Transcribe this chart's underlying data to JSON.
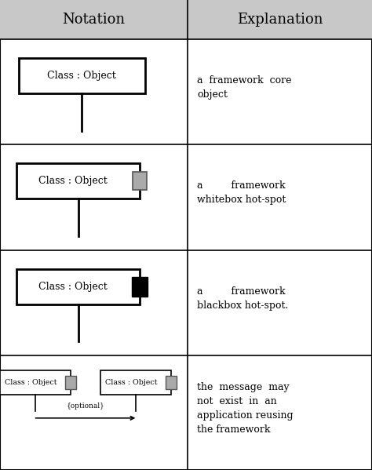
{
  "white": "#ffffff",
  "black": "#000000",
  "dark_gray": "#555555",
  "header_bg": "#c8c8c8",
  "hotspot_gray": "#aaaaaa",
  "col_divider": 0.505,
  "header_text_left": "Notation",
  "header_text_right": "Explanation",
  "row_tops": [
    1.0,
    0.917,
    0.692,
    0.468,
    0.243,
    0.0
  ],
  "rows": [
    {
      "explanation": "a  framework  core\nobject"
    },
    {
      "explanation": "a         framework\nwhitebox hot-spot"
    },
    {
      "explanation": "a         framework\nblackbox hot-spot."
    },
    {
      "explanation": "the  message  may\nnot  exist  in  an\napplication reusing\nthe framework"
    }
  ]
}
